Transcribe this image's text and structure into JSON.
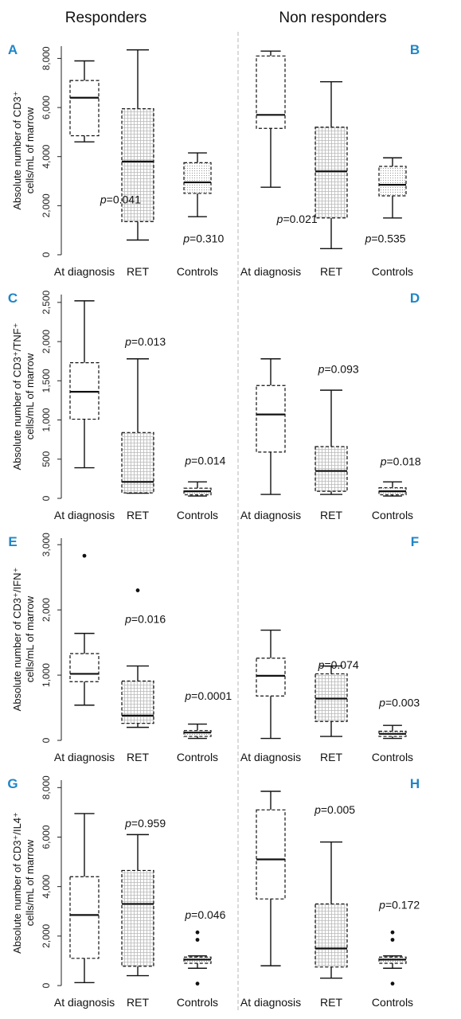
{
  "column_titles": [
    "Responders",
    "Non responders"
  ],
  "chart_data": [
    {
      "type": "box",
      "panel": "A",
      "row": 0,
      "col": 0,
      "ylabel_line1": "Absolute number of CD3⁺",
      "ylabel_line2": "cells/mL of marrow",
      "ylim": [
        0,
        8500
      ],
      "yticks": [
        0,
        2000,
        4000,
        6000,
        8000
      ],
      "ytick_labels": [
        "0",
        "2,000",
        "4,000",
        "6,000",
        "8,000"
      ],
      "categories": [
        "At diagnosis",
        "RET",
        "Controls"
      ],
      "boxes": [
        {
          "min": 4600,
          "q1": 4850,
          "median": 6400,
          "q3": 7100,
          "max": 7900,
          "outliers": []
        },
        {
          "min": 600,
          "q1": 1350,
          "median": 3800,
          "q3": 5950,
          "max": 8350,
          "outliers": []
        },
        {
          "min": 1550,
          "q1": 2500,
          "median": 2950,
          "q3": 3750,
          "max": 4150,
          "outliers": []
        }
      ],
      "pvalues": [
        {
          "prefix": "p",
          "text": "=0.041",
          "cat": 0.28,
          "y": 2100
        },
        {
          "prefix": "p",
          "text": "=0.310",
          "cat": 1.75,
          "y": 500
        }
      ]
    },
    {
      "type": "box",
      "panel": "B",
      "row": 0,
      "col": 1,
      "ylim": [
        0,
        8500
      ],
      "yticks": [
        0,
        2000,
        4000,
        6000,
        8000
      ],
      "categories": [
        "At diagnosis",
        "RET",
        "Controls"
      ],
      "boxes": [
        {
          "min": 2750,
          "q1": 5150,
          "median": 5700,
          "q3": 8100,
          "max": 8300,
          "outliers": []
        },
        {
          "min": 250,
          "q1": 1500,
          "median": 3400,
          "q3": 5200,
          "max": 7050,
          "outliers": []
        },
        {
          "min": 1500,
          "q1": 2400,
          "median": 2850,
          "q3": 3600,
          "max": 3950,
          "outliers": []
        }
      ],
      "pvalues": [
        {
          "prefix": "p",
          "text": "=0.021",
          "cat": 0.1,
          "y": 1300
        },
        {
          "prefix": "p",
          "text": "=0.535",
          "cat": 1.55,
          "y": 500
        }
      ]
    },
    {
      "type": "box",
      "panel": "C",
      "row": 1,
      "col": 0,
      "ylabel_line1": "Absolute number of CD3⁺/TNF⁺",
      "ylabel_line2": "cells/mL of marrow",
      "ylim": [
        0,
        2600
      ],
      "yticks": [
        0,
        500,
        1000,
        1500,
        2000,
        2500
      ],
      "ytick_labels": [
        "0",
        "500",
        "1,000",
        "1,500",
        "2,000",
        "2,500"
      ],
      "categories": [
        "At diagnosis",
        "RET",
        "Controls"
      ],
      "boxes": [
        {
          "min": 390,
          "q1": 1010,
          "median": 1360,
          "q3": 1730,
          "max": 2520,
          "outliers": []
        },
        {
          "min": 65,
          "q1": 70,
          "median": 210,
          "q3": 840,
          "max": 1780,
          "outliers": []
        },
        {
          "min": 30,
          "q1": 45,
          "median": 90,
          "q3": 130,
          "max": 210,
          "outliers": []
        }
      ],
      "pvalues": [
        {
          "prefix": "p",
          "text": "=0.013",
          "cat": 0.72,
          "y": 1950
        },
        {
          "prefix": "p",
          "text": "=0.014",
          "cat": 1.78,
          "y": 430
        }
      ]
    },
    {
      "type": "box",
      "panel": "D",
      "row": 1,
      "col": 1,
      "ylim": [
        0,
        2600
      ],
      "yticks": [
        0,
        500,
        1000,
        1500,
        2000,
        2500
      ],
      "categories": [
        "At diagnosis",
        "RET",
        "Controls"
      ],
      "boxes": [
        {
          "min": 50,
          "q1": 590,
          "median": 1070,
          "q3": 1440,
          "max": 1780,
          "outliers": []
        },
        {
          "min": 50,
          "q1": 90,
          "median": 350,
          "q3": 660,
          "max": 1380,
          "outliers": []
        },
        {
          "min": 30,
          "q1": 45,
          "median": 90,
          "q3": 135,
          "max": 210,
          "outliers": []
        }
      ],
      "pvalues": [
        {
          "prefix": "p",
          "text": "=0.093",
          "cat": 0.78,
          "y": 1600
        },
        {
          "prefix": "p",
          "text": "=0.018",
          "cat": 1.8,
          "y": 420
        }
      ]
    },
    {
      "type": "box",
      "panel": "E",
      "row": 2,
      "col": 0,
      "ylabel_line1": "Absolute number of CD3⁺/IFN⁺",
      "ylabel_line2": "cells/mL of marrow",
      "ylim": [
        0,
        3100
      ],
      "yticks": [
        0,
        1000,
        2000,
        3000
      ],
      "ytick_labels": [
        "0",
        "1,000",
        "2,000",
        "3,000"
      ],
      "categories": [
        "At diagnosis",
        "RET",
        "Controls"
      ],
      "boxes": [
        {
          "min": 540,
          "q1": 900,
          "median": 1020,
          "q3": 1330,
          "max": 1640,
          "outliers": [
            2830
          ]
        },
        {
          "min": 200,
          "q1": 260,
          "median": 380,
          "q3": 910,
          "max": 1140,
          "outliers": [
            2300
          ]
        },
        {
          "min": 30,
          "q1": 60,
          "median": 120,
          "q3": 150,
          "max": 250,
          "outliers": []
        }
      ],
      "pvalues": [
        {
          "prefix": "p",
          "text": "=0.016",
          "cat": 0.72,
          "y": 1800
        },
        {
          "prefix": "p",
          "text": "=0.0001",
          "cat": 1.78,
          "y": 620
        }
      ]
    },
    {
      "type": "box",
      "panel": "F",
      "row": 2,
      "col": 1,
      "ylim": [
        0,
        3100
      ],
      "yticks": [
        0,
        1000,
        2000,
        3000
      ],
      "categories": [
        "At diagnosis",
        "RET",
        "Controls"
      ],
      "boxes": [
        {
          "min": 30,
          "q1": 680,
          "median": 990,
          "q3": 1260,
          "max": 1690,
          "outliers": []
        },
        {
          "min": 60,
          "q1": 290,
          "median": 640,
          "q3": 1020,
          "max": 1140,
          "outliers": []
        },
        {
          "min": 30,
          "q1": 60,
          "median": 100,
          "q3": 140,
          "max": 230,
          "outliers": []
        }
      ],
      "pvalues": [
        {
          "prefix": "p",
          "text": "=0.074",
          "cat": 0.78,
          "y": 1100
        },
        {
          "prefix": "p",
          "text": "=0.003",
          "cat": 1.78,
          "y": 520
        }
      ]
    },
    {
      "type": "box",
      "panel": "G",
      "row": 3,
      "col": 0,
      "ylabel_line1": "Absolute number of CD3⁺/IL4⁺",
      "ylabel_line2": "cells/mL of marrow",
      "ylim": [
        0,
        8300
      ],
      "yticks": [
        0,
        2000,
        4000,
        6000,
        8000
      ],
      "ytick_labels": [
        "0",
        "2,000",
        "4,000",
        "6,000",
        "8,000"
      ],
      "categories": [
        "At diagnosis",
        "RET",
        "Controls"
      ],
      "boxes": [
        {
          "min": 120,
          "q1": 1100,
          "median": 2850,
          "q3": 4400,
          "max": 6950,
          "outliers": []
        },
        {
          "min": 400,
          "q1": 780,
          "median": 3300,
          "q3": 4650,
          "max": 6100,
          "outliers": []
        },
        {
          "min": 700,
          "q1": 900,
          "median": 1050,
          "q3": 1150,
          "max": 1200,
          "outliers": [
            2150,
            1850,
            80
          ]
        }
      ],
      "pvalues": [
        {
          "prefix": "p",
          "text": "=0.959",
          "cat": 0.72,
          "y": 6400
        },
        {
          "prefix": "p",
          "text": "=0.046",
          "cat": 1.78,
          "y": 2700
        }
      ]
    },
    {
      "type": "box",
      "panel": "H",
      "row": 3,
      "col": 1,
      "ylim": [
        0,
        8300
      ],
      "yticks": [
        0,
        2000,
        4000,
        6000,
        8000
      ],
      "categories": [
        "At diagnosis",
        "RET",
        "Controls"
      ],
      "boxes": [
        {
          "min": 800,
          "q1": 3500,
          "median": 5100,
          "q3": 7100,
          "max": 7850,
          "outliers": []
        },
        {
          "min": 300,
          "q1": 750,
          "median": 1500,
          "q3": 3300,
          "max": 5800,
          "outliers": []
        },
        {
          "min": 700,
          "q1": 900,
          "median": 1050,
          "q3": 1150,
          "max": 1200,
          "outliers": [
            2150,
            1850,
            80
          ]
        }
      ],
      "pvalues": [
        {
          "prefix": "p",
          "text": "=0.005",
          "cat": 0.72,
          "y": 6950
        },
        {
          "prefix": "p",
          "text": "=0.172",
          "cat": 1.78,
          "y": 3100
        }
      ]
    }
  ]
}
